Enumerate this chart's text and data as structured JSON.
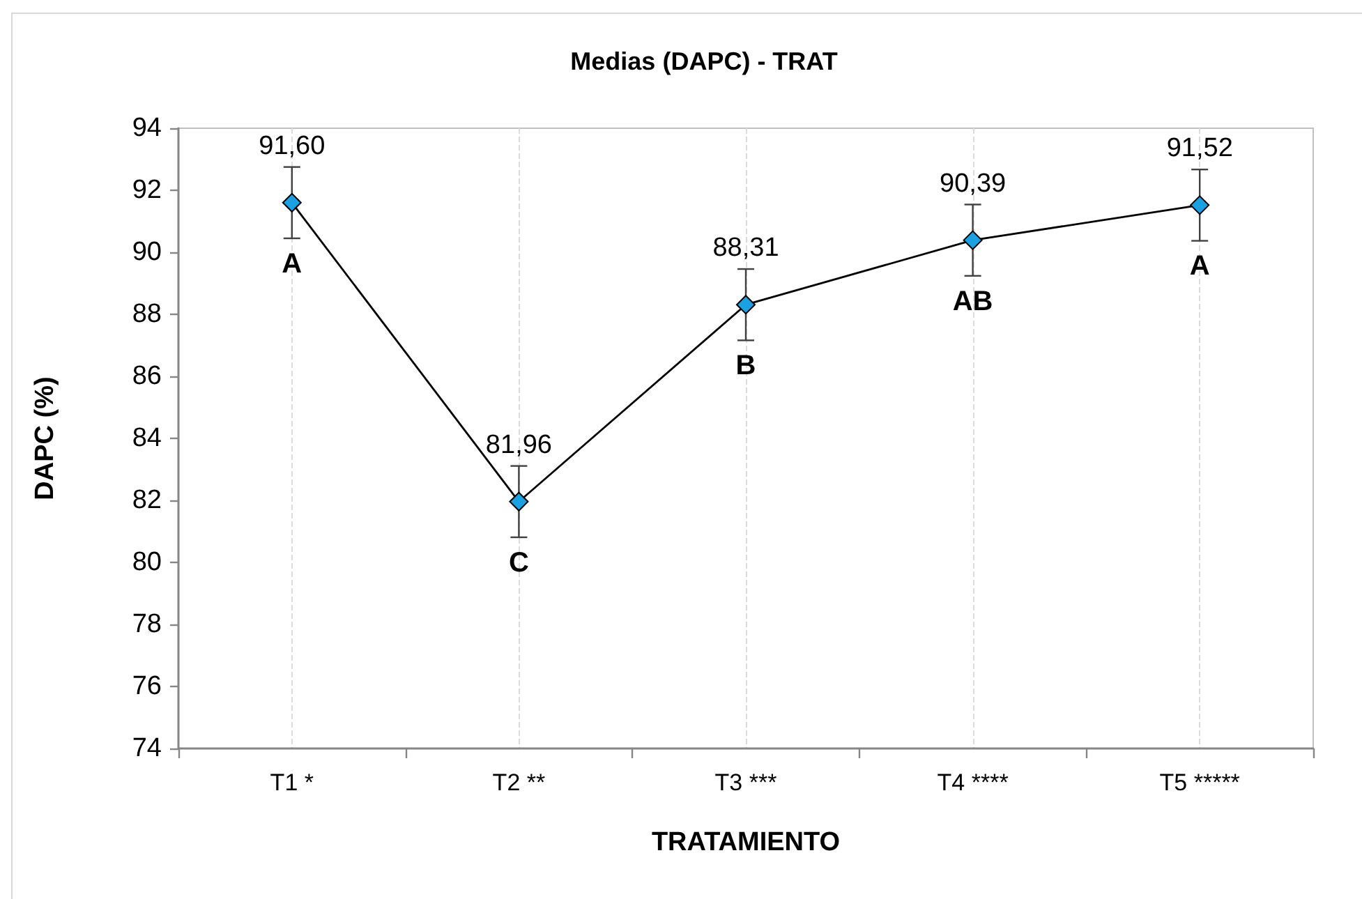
{
  "chart_data": {
    "type": "line",
    "title": "Medias (DAPC) - TRAT",
    "xlabel": "TRATAMIENTO",
    "ylabel": "DAPC (%)",
    "categories": [
      "T1 *",
      "T2 **",
      "T3 ***",
      "T4 ****",
      "T5 *****"
    ],
    "values": [
      91.6,
      81.96,
      88.31,
      90.39,
      91.52
    ],
    "value_labels": [
      "91,60",
      "81,96",
      "88,31",
      "90,39",
      "91,52"
    ],
    "errors": [
      1.15,
      1.15,
      1.15,
      1.15,
      1.15
    ],
    "color": "#000000",
    "colors": [
      "#1ba1e2",
      "#1ba1e2",
      "#1ba1e2",
      "#1ba1e2",
      "#1ba1e2"
    ],
    "marker": "diamond",
    "line_style": "solid",
    "ylim": [
      74,
      94
    ],
    "yticks": [
      74,
      76,
      78,
      80,
      82,
      84,
      86,
      88,
      90,
      92,
      94
    ],
    "grid": "x",
    "annotations": [
      {
        "text": "A",
        "x": "T1 *",
        "y": 91.6
      },
      {
        "text": "C",
        "x": "T2 **",
        "y": 81.96
      },
      {
        "text": "B",
        "x": "T3 ***",
        "y": 88.31
      },
      {
        "text": "AB",
        "x": "T4 ****",
        "y": 90.39
      },
      {
        "text": "A",
        "x": "T5 *****",
        "y": 91.52
      }
    ]
  }
}
